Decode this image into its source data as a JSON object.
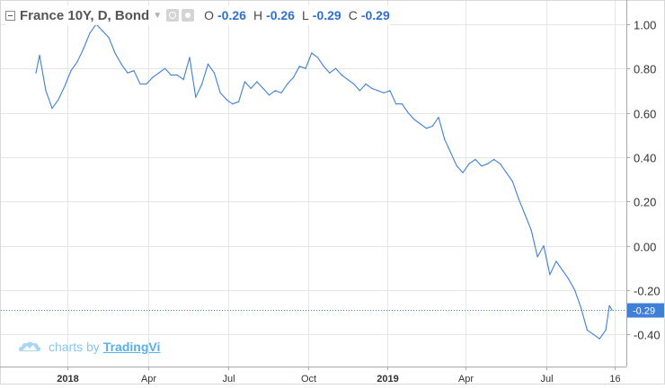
{
  "legend": {
    "symbol_title": "France 10Y, D, Bond",
    "ohlc": [
      {
        "key": "O",
        "value": "-0.26"
      },
      {
        "key": "H",
        "value": "-0.26"
      },
      {
        "key": "L",
        "value": "-0.29"
      },
      {
        "key": "C",
        "value": "-0.29"
      }
    ],
    "icons": [
      "collapse-icon",
      "dropdown-caret-icon",
      "visibility-icon",
      "settings-icon"
    ]
  },
  "watermark": {
    "prefix": "charts by",
    "brand": "TradingVi"
  },
  "colors": {
    "line": "#3f7fd8",
    "grid": "#e6e6e6",
    "axis": "#a8a8a8",
    "last_price_tag": "#3f7fd8",
    "label": "#333333"
  },
  "chart_data": {
    "type": "line",
    "series": [
      {
        "name": "France 10Y",
        "points": [
          [
            "2017-11-27",
            0.78
          ],
          [
            "2017-12-01",
            0.86
          ],
          [
            "2017-12-08",
            0.7
          ],
          [
            "2017-12-15",
            0.62
          ],
          [
            "2017-12-22",
            0.66
          ],
          [
            "2017-12-29",
            0.72
          ],
          [
            "2018-01-05",
            0.79
          ],
          [
            "2018-01-12",
            0.83
          ],
          [
            "2018-01-19",
            0.89
          ],
          [
            "2018-01-26",
            0.96
          ],
          [
            "2018-02-02",
            1.0
          ],
          [
            "2018-02-09",
            0.97
          ],
          [
            "2018-02-16",
            0.94
          ],
          [
            "2018-02-23",
            0.87
          ],
          [
            "2018-03-02",
            0.82
          ],
          [
            "2018-03-09",
            0.78
          ],
          [
            "2018-03-16",
            0.79
          ],
          [
            "2018-03-23",
            0.73
          ],
          [
            "2018-03-30",
            0.73
          ],
          [
            "2018-04-06",
            0.76
          ],
          [
            "2018-04-13",
            0.78
          ],
          [
            "2018-04-20",
            0.8
          ],
          [
            "2018-04-27",
            0.77
          ],
          [
            "2018-05-04",
            0.77
          ],
          [
            "2018-05-11",
            0.75
          ],
          [
            "2018-05-18",
            0.85
          ],
          [
            "2018-05-25",
            0.67
          ],
          [
            "2018-06-01",
            0.73
          ],
          [
            "2018-06-08",
            0.82
          ],
          [
            "2018-06-15",
            0.78
          ],
          [
            "2018-06-22",
            0.69
          ],
          [
            "2018-06-29",
            0.66
          ],
          [
            "2018-07-06",
            0.64
          ],
          [
            "2018-07-13",
            0.65
          ],
          [
            "2018-07-20",
            0.74
          ],
          [
            "2018-07-27",
            0.71
          ],
          [
            "2018-08-03",
            0.74
          ],
          [
            "2018-08-10",
            0.71
          ],
          [
            "2018-08-17",
            0.68
          ],
          [
            "2018-08-24",
            0.7
          ],
          [
            "2018-08-31",
            0.69
          ],
          [
            "2018-09-07",
            0.73
          ],
          [
            "2018-09-14",
            0.76
          ],
          [
            "2018-09-21",
            0.81
          ],
          [
            "2018-09-28",
            0.8
          ],
          [
            "2018-10-05",
            0.87
          ],
          [
            "2018-10-12",
            0.85
          ],
          [
            "2018-10-19",
            0.81
          ],
          [
            "2018-10-26",
            0.78
          ],
          [
            "2018-11-02",
            0.8
          ],
          [
            "2018-11-09",
            0.77
          ],
          [
            "2018-11-16",
            0.75
          ],
          [
            "2018-11-23",
            0.73
          ],
          [
            "2018-11-30",
            0.7
          ],
          [
            "2018-12-07",
            0.73
          ],
          [
            "2018-12-14",
            0.71
          ],
          [
            "2018-12-21",
            0.7
          ],
          [
            "2018-12-28",
            0.69
          ],
          [
            "2019-01-04",
            0.7
          ],
          [
            "2019-01-11",
            0.64
          ],
          [
            "2019-01-18",
            0.64
          ],
          [
            "2019-01-25",
            0.6
          ],
          [
            "2019-02-01",
            0.57
          ],
          [
            "2019-02-08",
            0.55
          ],
          [
            "2019-02-15",
            0.53
          ],
          [
            "2019-02-22",
            0.54
          ],
          [
            "2019-03-01",
            0.58
          ],
          [
            "2019-03-08",
            0.48
          ],
          [
            "2019-03-15",
            0.42
          ],
          [
            "2019-03-22",
            0.36
          ],
          [
            "2019-03-29",
            0.33
          ],
          [
            "2019-04-05",
            0.37
          ],
          [
            "2019-04-12",
            0.39
          ],
          [
            "2019-04-19",
            0.36
          ],
          [
            "2019-04-26",
            0.37
          ],
          [
            "2019-05-03",
            0.39
          ],
          [
            "2019-05-10",
            0.37
          ],
          [
            "2019-05-17",
            0.33
          ],
          [
            "2019-05-24",
            0.29
          ],
          [
            "2019-05-31",
            0.21
          ],
          [
            "2019-06-07",
            0.14
          ],
          [
            "2019-06-14",
            0.07
          ],
          [
            "2019-06-21",
            -0.05
          ],
          [
            "2019-06-28",
            0.0
          ],
          [
            "2019-07-05",
            -0.13
          ],
          [
            "2019-07-12",
            -0.07
          ],
          [
            "2019-07-19",
            -0.11
          ],
          [
            "2019-07-26",
            -0.15
          ],
          [
            "2019-08-02",
            -0.2
          ],
          [
            "2019-08-09",
            -0.28
          ],
          [
            "2019-08-16",
            -0.38
          ],
          [
            "2019-08-23",
            -0.4
          ],
          [
            "2019-08-30",
            -0.42
          ],
          [
            "2019-09-06",
            -0.38
          ],
          [
            "2019-09-10",
            -0.27
          ],
          [
            "2019-09-13",
            -0.29
          ]
        ]
      }
    ],
    "x_ticks": [
      "2018",
      "Apr",
      "Jul",
      "Oct",
      "2019",
      "Apr",
      "Jul",
      "16"
    ],
    "y_ticks": [
      1.0,
      0.8,
      0.6,
      0.4,
      0.2,
      0.0,
      -0.2,
      -0.4
    ],
    "y_tick_labels": [
      "1.00",
      "0.80",
      "0.60",
      "0.40",
      "0.20",
      "0.00",
      "-0.20",
      "-0.40"
    ],
    "ylim": [
      -0.545,
      1.105
    ],
    "last_price_label": "-0.29",
    "grid": true
  }
}
